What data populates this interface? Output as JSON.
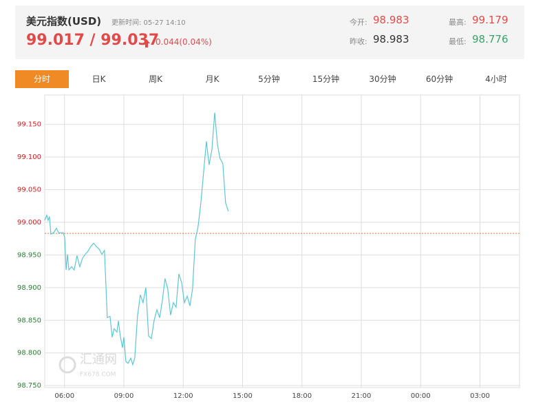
{
  "header": {
    "title": "美元指数(USD)",
    "update_time": "更新时间: 05-27 14:10",
    "price": "99.017 / 99.037",
    "change": "0.044(0.04%)",
    "stats": [
      {
        "label": "今开:",
        "value": "98.983"
      },
      {
        "label": "最高:",
        "value": "99.179"
      },
      {
        "label": "昨收:",
        "value": "98.983"
      },
      {
        "label": "最低:",
        "value": "98.776"
      }
    ]
  },
  "tabs": [
    "分时",
    "日K",
    "周K",
    "月K",
    "5分钟",
    "15分钟",
    "30分钟",
    "60分钟",
    "4小时"
  ],
  "watermark": {
    "name": "汇通网",
    "site": "FX678.COM"
  },
  "chart_data": {
    "type": "line",
    "color": "#5cc6d4",
    "baseline": 98.983,
    "baseline_color": "#e8743b",
    "up_color": "#cc2222",
    "down_color": "#2e7d32",
    "grid": true,
    "x": [
      5.0,
      5.1,
      5.17,
      5.24,
      5.31,
      5.45,
      5.59,
      5.7,
      5.94,
      6.01,
      6.08,
      6.15,
      6.22,
      6.36,
      6.49,
      6.63,
      6.77,
      6.91,
      7.05,
      7.19,
      7.33,
      7.47,
      7.61,
      7.75,
      7.89,
      8.02,
      8.16,
      8.3,
      8.41,
      8.51,
      8.65,
      8.72,
      8.82,
      8.93,
      9.0,
      9.1,
      9.21,
      9.35,
      9.45,
      9.55,
      9.69,
      9.83,
      9.97,
      10.11,
      10.25,
      10.39,
      10.53,
      10.67,
      10.81,
      10.94,
      11.08,
      11.22,
      11.36,
      11.5,
      11.64,
      11.78,
      11.92,
      12.06,
      12.2,
      12.34,
      12.47,
      12.61,
      12.75,
      12.89,
      13.03,
      13.17,
      13.31,
      13.45,
      13.59,
      13.73,
      13.86,
      14.0,
      14.14,
      14.28
    ],
    "values": [
      99.003,
      99.011,
      99.003,
      99.009,
      98.982,
      98.984,
      98.991,
      98.984,
      98.984,
      98.977,
      98.927,
      98.951,
      98.927,
      98.932,
      98.927,
      98.949,
      98.932,
      98.945,
      98.951,
      98.956,
      98.963,
      98.968,
      98.963,
      98.959,
      98.951,
      98.957,
      98.854,
      98.856,
      98.824,
      98.837,
      98.832,
      98.849,
      98.826,
      98.808,
      98.824,
      98.787,
      98.784,
      98.792,
      98.782,
      98.792,
      98.856,
      98.889,
      98.877,
      98.9,
      98.826,
      98.822,
      98.85,
      98.866,
      98.854,
      98.879,
      98.914,
      98.898,
      98.858,
      98.877,
      98.87,
      98.921,
      98.908,
      98.877,
      98.887,
      98.872,
      98.898,
      98.974,
      98.993,
      99.029,
      99.077,
      99.124,
      99.088,
      99.111,
      99.168,
      99.119,
      99.098,
      99.09,
      99.03,
      99.017
    ],
    "xlim": [
      5,
      29
    ],
    "xticks": [
      {
        "value": 6,
        "label": "06:00"
      },
      {
        "value": 9,
        "label": "09:00"
      },
      {
        "value": 12,
        "label": "12:00"
      },
      {
        "value": 15,
        "label": "15:00"
      },
      {
        "value": 18,
        "label": "18:00"
      },
      {
        "value": 21,
        "label": "21:00"
      },
      {
        "value": 24,
        "label": "00:00"
      },
      {
        "value": 27,
        "label": "03:00"
      }
    ],
    "ylim": [
      98.747,
      99.195
    ],
    "yticks": [
      {
        "value": 98.75,
        "label": "98.750"
      },
      {
        "value": 98.8,
        "label": "98.800"
      },
      {
        "value": 98.85,
        "label": "98.850"
      },
      {
        "value": 98.9,
        "label": "98.900"
      },
      {
        "value": 98.95,
        "label": "98.950"
      },
      {
        "value": 99.0,
        "label": "99.000"
      },
      {
        "value": 99.05,
        "label": "99.050"
      },
      {
        "value": 99.1,
        "label": "99.100"
      },
      {
        "value": 99.15,
        "label": "99.150"
      }
    ]
  }
}
